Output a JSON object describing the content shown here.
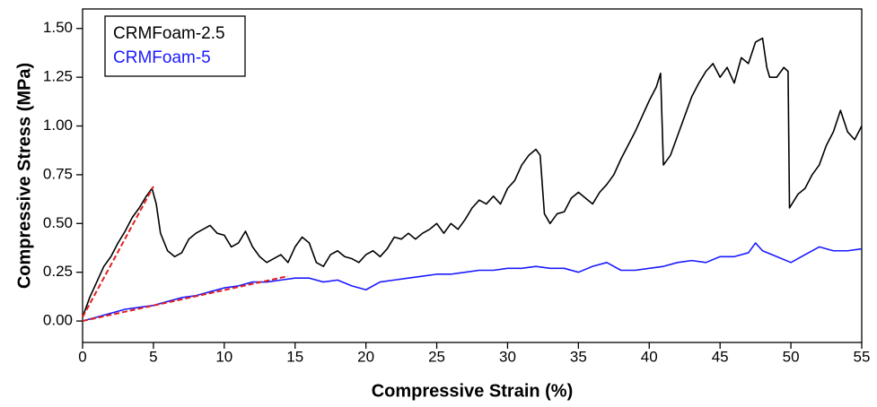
{
  "chart_data": {
    "type": "line",
    "x_label": "Compressive Strain (%)",
    "y_label": "Compressive Stress (MPa)",
    "xlim": [
      0,
      55
    ],
    "ylim": [
      -0.11,
      1.6
    ],
    "xticks": [
      0,
      5,
      10,
      15,
      20,
      25,
      30,
      35,
      40,
      45,
      50,
      55
    ],
    "yticks": [
      {
        "value": 0,
        "label": "0.00"
      },
      0.25,
      {
        "value": 0.5,
        "label": "0.50"
      },
      0.75,
      {
        "value": 1,
        "label": "1.00"
      },
      1.25,
      {
        "value": 1.5,
        "label": "1.50"
      }
    ],
    "legend": "upper left",
    "series": [
      {
        "name": "CRMFoam-2.5",
        "color": "#000000",
        "x": [
          0,
          0.5,
          1,
          1.5,
          2,
          2.5,
          3,
          3.5,
          4,
          4.5,
          4.9,
          5.2,
          5.5,
          6,
          6.5,
          7,
          7.5,
          8,
          8.5,
          9,
          9.5,
          10,
          10.5,
          11,
          11.5,
          12,
          12.5,
          13,
          13.5,
          14,
          14.5,
          15,
          15.5,
          16,
          16.5,
          17,
          17.5,
          18,
          18.5,
          19,
          19.5,
          20,
          20.5,
          21,
          21.5,
          22,
          22.5,
          23,
          23.5,
          24,
          24.5,
          25,
          25.5,
          26,
          26.5,
          27,
          27.5,
          28,
          28.5,
          29,
          29.5,
          30,
          30.5,
          31,
          31.5,
          32,
          32.3,
          32.6,
          33,
          33.5,
          34,
          34.5,
          35,
          35.5,
          36,
          36.5,
          37,
          37.5,
          38,
          38.5,
          39,
          39.5,
          40,
          40.5,
          40.8,
          41,
          41.5,
          42,
          42.5,
          43,
          43.5,
          44,
          44.5,
          45,
          45.5,
          46,
          46.5,
          47,
          47.5,
          48,
          48.3,
          48.5,
          49,
          49.5,
          49.8,
          49.9,
          50.5,
          51,
          51.5,
          52,
          52.5,
          53,
          53.5,
          54,
          54.5,
          55
        ],
        "values": [
          0.02,
          0.12,
          0.2,
          0.28,
          0.33,
          0.4,
          0.46,
          0.53,
          0.58,
          0.64,
          0.68,
          0.6,
          0.45,
          0.36,
          0.33,
          0.35,
          0.42,
          0.45,
          0.47,
          0.49,
          0.45,
          0.44,
          0.38,
          0.4,
          0.46,
          0.38,
          0.33,
          0.3,
          0.32,
          0.34,
          0.3,
          0.38,
          0.43,
          0.4,
          0.3,
          0.28,
          0.34,
          0.36,
          0.33,
          0.32,
          0.3,
          0.34,
          0.36,
          0.33,
          0.37,
          0.43,
          0.42,
          0.45,
          0.42,
          0.45,
          0.47,
          0.5,
          0.45,
          0.5,
          0.47,
          0.52,
          0.58,
          0.62,
          0.6,
          0.64,
          0.6,
          0.68,
          0.72,
          0.8,
          0.85,
          0.88,
          0.85,
          0.55,
          0.5,
          0.55,
          0.56,
          0.63,
          0.66,
          0.63,
          0.6,
          0.66,
          0.7,
          0.75,
          0.83,
          0.9,
          0.97,
          1.05,
          1.13,
          1.2,
          1.27,
          0.8,
          0.85,
          0.95,
          1.05,
          1.15,
          1.22,
          1.28,
          1.32,
          1.25,
          1.3,
          1.22,
          1.35,
          1.32,
          1.43,
          1.45,
          1.3,
          1.25,
          1.25,
          1.3,
          1.28,
          0.58,
          0.65,
          0.68,
          0.75,
          0.8,
          0.9,
          0.97,
          1.08,
          0.97,
          0.93,
          1.0
        ]
      },
      {
        "name": "CRMFoam-5",
        "color": "#1a1aff",
        "x": [
          0,
          1,
          2,
          3,
          4,
          5,
          6,
          7,
          8,
          9,
          10,
          11,
          12,
          13,
          14,
          15,
          16,
          17,
          18,
          19,
          20,
          21,
          22,
          23,
          24,
          25,
          26,
          27,
          28,
          29,
          30,
          31,
          32,
          33,
          34,
          35,
          36,
          37,
          38,
          39,
          40,
          41,
          42,
          43,
          44,
          45,
          46,
          47,
          47.5,
          48,
          49,
          50,
          51,
          52,
          53,
          54,
          55
        ],
        "values": [
          0,
          0.02,
          0.04,
          0.06,
          0.07,
          0.08,
          0.1,
          0.12,
          0.13,
          0.15,
          0.17,
          0.18,
          0.2,
          0.2,
          0.21,
          0.22,
          0.22,
          0.2,
          0.21,
          0.18,
          0.16,
          0.2,
          0.21,
          0.22,
          0.23,
          0.24,
          0.24,
          0.25,
          0.26,
          0.26,
          0.27,
          0.27,
          0.28,
          0.27,
          0.27,
          0.25,
          0.28,
          0.3,
          0.26,
          0.26,
          0.27,
          0.28,
          0.3,
          0.31,
          0.3,
          0.33,
          0.33,
          0.35,
          0.4,
          0.36,
          0.33,
          0.3,
          0.34,
          0.38,
          0.36,
          0.36,
          0.37
        ]
      }
    ],
    "fit_lines": [
      {
        "color": "#e02020",
        "x": [
          0,
          5
        ],
        "values": [
          0.02,
          0.69
        ]
      },
      {
        "color": "#e02020",
        "x": [
          0,
          14.5
        ],
        "values": [
          0,
          0.23
        ]
      }
    ]
  }
}
